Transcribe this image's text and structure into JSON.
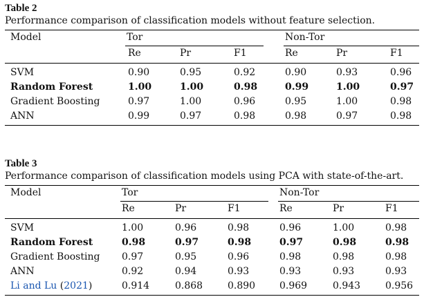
{
  "table2": {
    "title": "Table 2",
    "caption": "Performance comparison of classification models without feature selection.",
    "header": {
      "model": "Model",
      "group1": "Tor",
      "group2": "Non-Tor"
    },
    "subheaders": [
      "Re",
      "Pr",
      "F1",
      "Re",
      "Pr",
      "F1"
    ],
    "rows": [
      {
        "model": "SVM",
        "bold": false,
        "values": [
          "0.90",
          "0.95",
          "0.92",
          "0.90",
          "0.93",
          "0.96"
        ]
      },
      {
        "model": "Random Forest",
        "bold": true,
        "values": [
          "1.00",
          "1.00",
          "0.98",
          "0.99",
          "1.00",
          "0.97"
        ]
      },
      {
        "model": "Gradient Boosting",
        "bold": false,
        "values": [
          "0.97",
          "1.00",
          "0.96",
          "0.95",
          "1.00",
          "0.98"
        ]
      },
      {
        "model": "ANN",
        "bold": false,
        "values": [
          "0.99",
          "0.97",
          "0.98",
          "0.98",
          "0.97",
          "0.98"
        ]
      }
    ]
  },
  "table3": {
    "title": "Table 3",
    "caption": "Performance comparison of classification models using PCA with state-of-the-art.",
    "header": {
      "model": "Model",
      "group1": "Tor",
      "group2": "Non-Tor"
    },
    "subheaders": [
      "Re",
      "Pr",
      "F1",
      "Re",
      "Pr",
      "F1"
    ],
    "rows": [
      {
        "model": "SVM",
        "bold": false,
        "values": [
          "1.00",
          "0.96",
          "0.98",
          "0.96",
          "1.00",
          "0.98"
        ]
      },
      {
        "model": "Random Forest",
        "bold": true,
        "values": [
          "0.98",
          "0.97",
          "0.98",
          "0.97",
          "0.98",
          "0.98"
        ]
      },
      {
        "model": "Gradient Boosting",
        "bold": false,
        "values": [
          "0.97",
          "0.95",
          "0.96",
          "0.98",
          "0.98",
          "0.98"
        ]
      },
      {
        "model": "ANN",
        "bold": false,
        "values": [
          "0.92",
          "0.94",
          "0.93",
          "0.93",
          "0.93",
          "0.93"
        ]
      },
      {
        "model": "Li and Lu",
        "model_year": "2021",
        "link": true,
        "bold": false,
        "values": [
          "0.914",
          "0.868",
          "0.890",
          "0.969",
          "0.943",
          "0.956"
        ]
      }
    ]
  },
  "colors": {
    "link": "#1a56b0",
    "text": "#111111"
  }
}
